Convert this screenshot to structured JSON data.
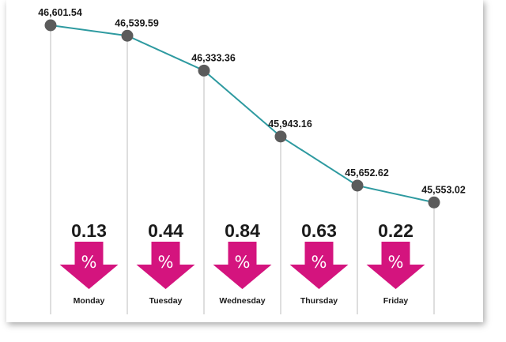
{
  "colors": {
    "line": "#2e9aa0",
    "marker": "#5b5b5b",
    "drop_line": "#bdbdbd",
    "arrow": "#d4147e"
  },
  "chart_data": {
    "type": "line",
    "categories": [
      "Monday",
      "Tuesday",
      "Wednesday",
      "Thursday",
      "Friday"
    ],
    "points": [
      {
        "label": "46,601.54",
        "value": 46601.54
      },
      {
        "label": "46,539.59",
        "value": 46539.59
      },
      {
        "label": "46,333.36",
        "value": 46333.36
      },
      {
        "label": "45,943.16",
        "value": 45943.16
      },
      {
        "label": "45,652.62",
        "value": 45652.62
      },
      {
        "label": "45,553.02",
        "value": 45553.02
      }
    ],
    "daily_change_pct": [
      "0.13",
      "0.44",
      "0.84",
      "0.63",
      "0.22"
    ],
    "change_direction": "down",
    "change_icon": "down-arrow-percent-icon",
    "percent_symbol": "%",
    "ylim": [
      45500,
      46650
    ]
  }
}
